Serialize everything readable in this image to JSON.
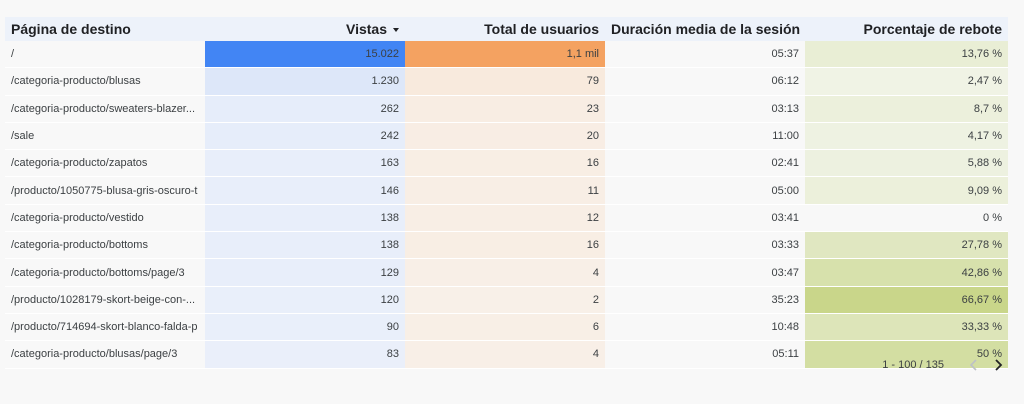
{
  "table": {
    "headers": {
      "page": "Página de destino",
      "views": "Vistas",
      "users": "Total de usuarios",
      "duration": "Duración media de la sesión",
      "bounce": "Porcentaje de rebote"
    },
    "sort": {
      "column": "views",
      "direction": "descending",
      "icon": "sort-down-icon"
    },
    "rows": [
      {
        "page": "/",
        "views": "15.022",
        "users": "1,1 mil",
        "duration": "05:37",
        "bounce": "13,76 %"
      },
      {
        "page": "/categoria-producto/blusas",
        "views": "1.230",
        "users": "79",
        "duration": "06:12",
        "bounce": "2,47 %"
      },
      {
        "page": "/categoria-producto/sweaters-blazer...",
        "views": "262",
        "users": "23",
        "duration": "03:13",
        "bounce": "8,7 %"
      },
      {
        "page": "/sale",
        "views": "242",
        "users": "20",
        "duration": "11:00",
        "bounce": "4,17 %"
      },
      {
        "page": "/categoria-producto/zapatos",
        "views": "163",
        "users": "16",
        "duration": "02:41",
        "bounce": "5,88 %"
      },
      {
        "page": "/producto/1050775-blusa-gris-oscuro-t",
        "views": "146",
        "users": "11",
        "duration": "05:00",
        "bounce": "9,09 %"
      },
      {
        "page": "/categoria-producto/vestido",
        "views": "138",
        "users": "12",
        "duration": "03:41",
        "bounce": "0 %"
      },
      {
        "page": "/categoria-producto/bottoms",
        "views": "138",
        "users": "16",
        "duration": "03:33",
        "bounce": "27,78 %"
      },
      {
        "page": "/categoria-producto/bottoms/page/3",
        "views": "129",
        "users": "4",
        "duration": "03:47",
        "bounce": "42,86 %"
      },
      {
        "page": "/producto/1028179-skort-beige-con-...",
        "views": "120",
        "users": "2",
        "duration": "35:23",
        "bounce": "66,67 %"
      },
      {
        "page": "/producto/714694-skort-blanco-falda-p",
        "views": "90",
        "users": "6",
        "duration": "10:48",
        "bounce": "33,33 %"
      },
      {
        "page": "/categoria-producto/blusas/page/3",
        "views": "83",
        "users": "4",
        "duration": "05:11",
        "bounce": "50 %"
      }
    ]
  },
  "pagination": {
    "range": "1 - 100 / 135",
    "prev_icon": "chevron-left-icon",
    "next_icon": "chevron-right-icon"
  },
  "colors": {
    "views_max": "#4285f4",
    "users_max": "#f4a261",
    "bounce_max": "#c9d68a",
    "views_min": "#eef2fa",
    "users_min": "#f8f1ea",
    "bounce_min": "#f1f4e8"
  }
}
